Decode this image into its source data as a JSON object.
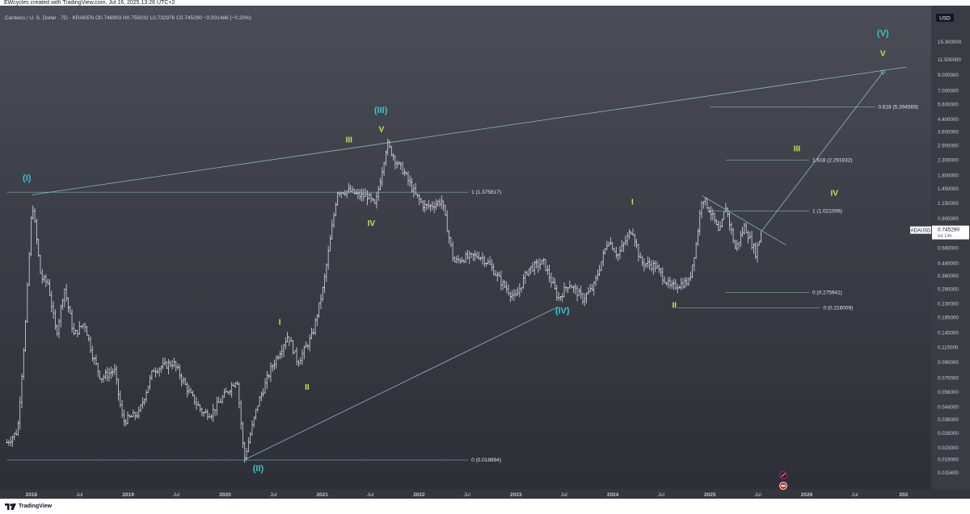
{
  "header": {
    "attribution": "EWcycles created with TradingView.com, Jul 16, 2025 13:26 UTC+2"
  },
  "legend": {
    "symbol_line": "Cardano / U. S. Dollar · 7D · KRAKEN O0.746903 H0.755032 L0.732976 C0.745290 −0.001486 (−0.20%)"
  },
  "footer": {
    "brand": "TradingView",
    "logo_icon": "tradingview-logo-icon"
  },
  "chart_data": {
    "type": "candlestick",
    "symbol": "ADAUSD",
    "scale": "log",
    "y_currency_badge": "USD",
    "ylim": [
      0.0125,
      19
    ],
    "x_range": [
      "2017-09-20",
      "2027-04-15"
    ],
    "colors": {
      "bars": "#d9dbe2",
      "lines": "#8fd3d0",
      "fib_text": "#e3e6ec",
      "wave_cyan": "#35c7cf",
      "wave_green": "#c6e34b"
    },
    "y_ticks": [
      "15.300000",
      "11.500000",
      "9.000000",
      "7.000000",
      "5.600000",
      "4.400000",
      "3.600000",
      "2.900000",
      "2.300000",
      "1.800000",
      "1.450000",
      "1.150000",
      "0.900000",
      "0.700000",
      "0.560000",
      "0.440000",
      "0.360000",
      "0.290000",
      "0.230000",
      "0.185000",
      "0.145000",
      "0.115000",
      "0.090000",
      "0.070000",
      "0.056000",
      "0.044000",
      "0.036000",
      "0.029000",
      "0.023000",
      "0.019000",
      "0.015400"
    ],
    "x_ticks": [
      {
        "date": "2018-01-01",
        "label": "2018"
      },
      {
        "date": "2018-07-01",
        "label": "Jul"
      },
      {
        "date": "2019-01-01",
        "label": "2019"
      },
      {
        "date": "2019-07-01",
        "label": "Jul"
      },
      {
        "date": "2020-01-01",
        "label": "2020"
      },
      {
        "date": "2020-07-01",
        "label": "Jul"
      },
      {
        "date": "2021-01-01",
        "label": "2021"
      },
      {
        "date": "2021-07-01",
        "label": "Jul"
      },
      {
        "date": "2022-01-01",
        "label": "2022"
      },
      {
        "date": "2022-07-01",
        "label": "Jul"
      },
      {
        "date": "2023-01-01",
        "label": "2023"
      },
      {
        "date": "2023-07-01",
        "label": "Jul"
      },
      {
        "date": "2024-01-01",
        "label": "2024"
      },
      {
        "date": "2024-07-01",
        "label": "Jul"
      },
      {
        "date": "2025-01-01",
        "label": "2025"
      },
      {
        "date": "2025-07-01",
        "label": "Jul"
      },
      {
        "date": "2026-01-01",
        "label": "2026"
      },
      {
        "date": "2026-07-01",
        "label": "Jul"
      },
      {
        "date": "2027-01-01",
        "label": "202"
      }
    ],
    "price_path": [
      [
        "2017-10-01",
        0.025
      ],
      [
        "2017-11-10",
        0.03
      ],
      [
        "2017-12-10",
        0.17
      ],
      [
        "2018-01-04",
        1.2
      ],
      [
        "2018-02-06",
        0.35
      ],
      [
        "2018-03-05",
        0.32
      ],
      [
        "2018-04-05",
        0.14
      ],
      [
        "2018-05-05",
        0.3
      ],
      [
        "2018-06-10",
        0.14
      ],
      [
        "2018-07-20",
        0.17
      ],
      [
        "2018-08-20",
        0.1
      ],
      [
        "2018-09-20",
        0.07
      ],
      [
        "2018-11-10",
        0.08
      ],
      [
        "2018-12-12",
        0.035
      ],
      [
        "2019-02-10",
        0.04
      ],
      [
        "2019-04-05",
        0.08
      ],
      [
        "2019-06-20",
        0.09
      ],
      [
        "2019-08-20",
        0.055
      ],
      [
        "2019-10-10",
        0.04
      ],
      [
        "2019-11-10",
        0.04
      ],
      [
        "2020-02-15",
        0.07
      ],
      [
        "2020-03-13",
        0.019
      ],
      [
        "2020-05-01",
        0.045
      ],
      [
        "2020-06-20",
        0.08
      ],
      [
        "2020-08-25",
        0.14
      ],
      [
        "2020-10-01",
        0.09
      ],
      [
        "2020-11-25",
        0.14
      ],
      [
        "2021-01-05",
        0.3
      ],
      [
        "2021-02-27",
        1.4
      ],
      [
        "2021-04-15",
        1.4
      ],
      [
        "2021-05-20",
        1.3
      ],
      [
        "2021-06-20",
        1.3
      ],
      [
        "2021-07-20",
        1.1
      ],
      [
        "2021-09-02",
        3.0
      ],
      [
        "2021-10-10",
        2.2
      ],
      [
        "2021-11-05",
        1.9
      ],
      [
        "2021-12-20",
        1.3
      ],
      [
        "2022-01-20",
        1.1
      ],
      [
        "2022-02-10",
        1.1
      ],
      [
        "2022-03-28",
        1.2
      ],
      [
        "2022-05-12",
        0.45
      ],
      [
        "2022-06-20",
        0.48
      ],
      [
        "2022-08-15",
        0.5
      ],
      [
        "2022-09-20",
        0.44
      ],
      [
        "2022-11-10",
        0.32
      ],
      [
        "2022-12-30",
        0.25
      ],
      [
        "2023-02-15",
        0.4
      ],
      [
        "2023-04-15",
        0.45
      ],
      [
        "2023-06-10",
        0.25
      ],
      [
        "2023-07-20",
        0.32
      ],
      [
        "2023-09-10",
        0.25
      ],
      [
        "2023-10-20",
        0.3
      ],
      [
        "2023-12-15",
        0.65
      ],
      [
        "2024-01-20",
        0.5
      ],
      [
        "2024-03-14",
        0.77
      ],
      [
        "2024-04-15",
        0.45
      ],
      [
        "2024-06-10",
        0.42
      ],
      [
        "2024-08-05",
        0.3
      ],
      [
        "2024-10-15",
        0.33
      ],
      [
        "2024-11-10",
        0.6
      ],
      [
        "2024-12-03",
        1.3
      ],
      [
        "2025-01-10",
        0.95
      ],
      [
        "2025-02-05",
        0.7
      ],
      [
        "2025-03-02",
        1.1
      ],
      [
        "2025-04-07",
        0.55
      ],
      [
        "2025-05-12",
        0.8
      ],
      [
        "2025-06-22",
        0.52
      ],
      [
        "2025-07-16",
        0.745
      ]
    ],
    "last_price": {
      "symbol": "ADAUSD",
      "value": "0.745290",
      "countdown": "6d 13h"
    },
    "trendlines": [
      {
        "from": [
          "2018-01-04",
          1.32
        ],
        "to": [
          "2027-01-10",
          10.2
        ]
      },
      {
        "from": [
          "2020-03-13",
          0.0189
        ],
        "to": [
          "2023-06-10",
          0.22
        ]
      },
      {
        "from": [
          "2024-12-03",
          1.3
        ],
        "to": [
          "2025-10-15",
          0.59
        ]
      },
      {
        "from": [
          "2025-07-16",
          0.74
        ],
        "to": [
          "2026-10-15",
          9.4
        ]
      }
    ],
    "fib_levels": [
      {
        "label": "0.618 (5.394569)",
        "value": 5.394569,
        "from": "2025-01-01",
        "to": "2026-09-15"
      },
      {
        "label": "1.618 (2.291832)",
        "value": 2.291832,
        "from": "2025-03-01",
        "to": "2026-01-10"
      },
      {
        "label": "1 (1.375617)",
        "value": 1.375617,
        "from": "2017-10-01",
        "to": "2022-07-05"
      },
      {
        "label": "1 (1.021006)",
        "value": 1.021006,
        "from": "2024-12-20",
        "to": "2026-01-10"
      },
      {
        "label": "0 (0.275941)",
        "value": 0.275941,
        "from": "2025-03-01",
        "to": "2026-01-10"
      },
      {
        "label": "0 (0.216009)",
        "value": 0.216009,
        "from": "2024-09-01",
        "to": "2026-02-20"
      },
      {
        "label": "0 (0.018894)",
        "value": 0.018894,
        "from": "2017-10-01",
        "to": "2022-07-05"
      }
    ],
    "wave_labels": [
      {
        "text": "(I)",
        "date": "2017-12-15",
        "value": 1.65,
        "color": "cyan"
      },
      {
        "text": "(III)",
        "date": "2021-08-10",
        "value": 4.9,
        "color": "cyan"
      },
      {
        "text": "V",
        "date": "2021-08-12",
        "value": 3.6,
        "color": "green"
      },
      {
        "text": "III",
        "date": "2021-04-12",
        "value": 3.05,
        "color": "green"
      },
      {
        "text": "IV",
        "date": "2021-07-05",
        "value": 0.8,
        "color": "green"
      },
      {
        "text": "I",
        "date": "2020-07-25",
        "value": 0.165,
        "color": "green"
      },
      {
        "text": "II",
        "date": "2020-11-05",
        "value": 0.058,
        "color": "green"
      },
      {
        "text": "(II)",
        "date": "2020-05-05",
        "value": 0.0158,
        "color": "cyan"
      },
      {
        "text": "(IV)",
        "date": "2023-06-25",
        "value": 0.197,
        "color": "cyan"
      },
      {
        "text": "I",
        "date": "2024-03-15",
        "value": 1.13,
        "color": "green"
      },
      {
        "text": "II",
        "date": "2024-08-20",
        "value": 0.216,
        "color": "green"
      },
      {
        "text": "III",
        "date": "2025-11-25",
        "value": 2.65,
        "color": "green"
      },
      {
        "text": "IV",
        "date": "2026-04-15",
        "value": 1.3,
        "color": "green"
      },
      {
        "text": "V",
        "date": "2026-10-15",
        "value": 12.2,
        "color": "green"
      },
      {
        "text": "(V)",
        "date": "2026-10-15",
        "value": 16.8,
        "color": "cyan"
      }
    ]
  }
}
